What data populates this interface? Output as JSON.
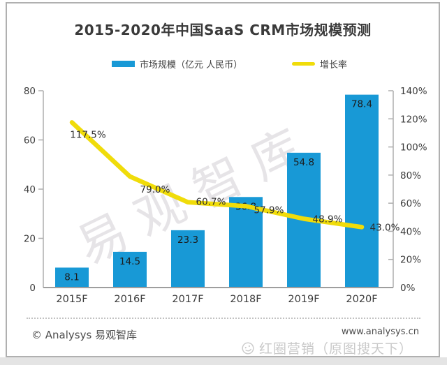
{
  "chart_data": {
    "type": "bar",
    "subtype": "combo-bar-line",
    "title": "2015-2020年中国SaaS CRM市场规模预测",
    "categories": [
      "2015F",
      "2016F",
      "2017F",
      "2018F",
      "2019F",
      "2020F"
    ],
    "series": [
      {
        "name": "市场规模（亿元 人民币）",
        "type": "bar",
        "axis": "left",
        "color": "#1899d6",
        "values": [
          8.1,
          14.5,
          23.3,
          36.8,
          54.8,
          78.4
        ]
      },
      {
        "name": "增长率",
        "type": "line",
        "axis": "right",
        "color": "#f0dc0a",
        "values": [
          117.5,
          79.0,
          60.7,
          57.9,
          48.9,
          43.0
        ],
        "labels": [
          "117.5%",
          "79.0%",
          "60.7%",
          "57.9%",
          "48.9%",
          "43.0%"
        ]
      }
    ],
    "left_axis": {
      "min": 0,
      "max": 80,
      "ticks": [
        0,
        20,
        40,
        60,
        80
      ]
    },
    "right_axis": {
      "min": 0,
      "max": 140,
      "tick_labels": [
        "0%",
        "20%",
        "40%",
        "60%",
        "80%",
        "100%",
        "120%",
        "140%"
      ],
      "tick_values": [
        0,
        20,
        40,
        60,
        80,
        100,
        120,
        140
      ]
    },
    "grid": false,
    "legend_position": "top"
  },
  "footer": {
    "copyright": "© Analysys 易观智库",
    "website": "www.analysys.cn"
  },
  "watermarks": {
    "diagonal": "易观智库",
    "bottom": "红圈营销（原图搜天下）"
  }
}
